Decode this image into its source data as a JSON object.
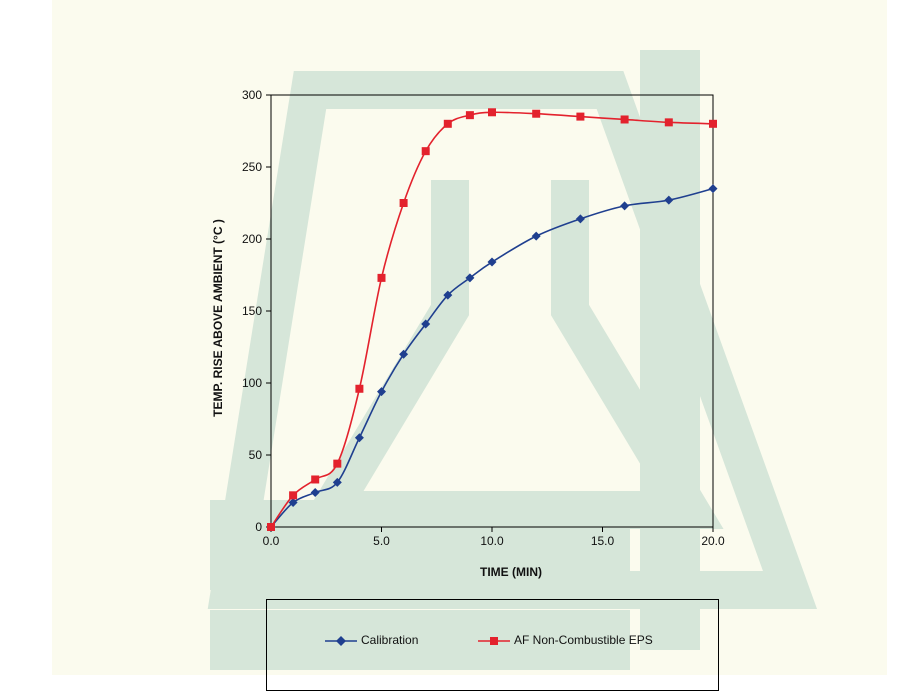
{
  "chart_data": {
    "type": "line",
    "title": "",
    "xlabel": "TIME (MIN)",
    "ylabel": "TEMP. RISE ABOVE AMBIENT (°C )",
    "xlim": [
      0,
      20
    ],
    "ylim": [
      0,
      300
    ],
    "x_ticks": [
      "0.0",
      "5.0",
      "10.0",
      "15.0",
      "20.0"
    ],
    "y_ticks": [
      "0",
      "50",
      "100",
      "150",
      "200",
      "250",
      "300"
    ],
    "grid": false,
    "legend_position": "bottom",
    "series": [
      {
        "name": "Calibration",
        "color": "#1f3f8f",
        "marker": "diamond",
        "x": [
          0,
          1,
          2,
          3,
          4,
          5,
          6,
          7,
          8,
          9,
          10,
          12,
          14,
          16,
          18,
          20
        ],
        "y": [
          0,
          17,
          24,
          31,
          62,
          94,
          120,
          141,
          161,
          173,
          184,
          202,
          214,
          223,
          227,
          235
        ]
      },
      {
        "name": "AF Non-Combustible EPS",
        "color": "#e3222d",
        "marker": "square",
        "x": [
          0,
          1,
          2,
          3,
          4,
          5,
          6,
          7,
          8,
          9,
          10,
          12,
          14,
          16,
          18,
          20
        ],
        "y": [
          0,
          22,
          33,
          44,
          96,
          173,
          225,
          261,
          280,
          286,
          288,
          287,
          285,
          283,
          281,
          280
        ]
      }
    ]
  }
}
